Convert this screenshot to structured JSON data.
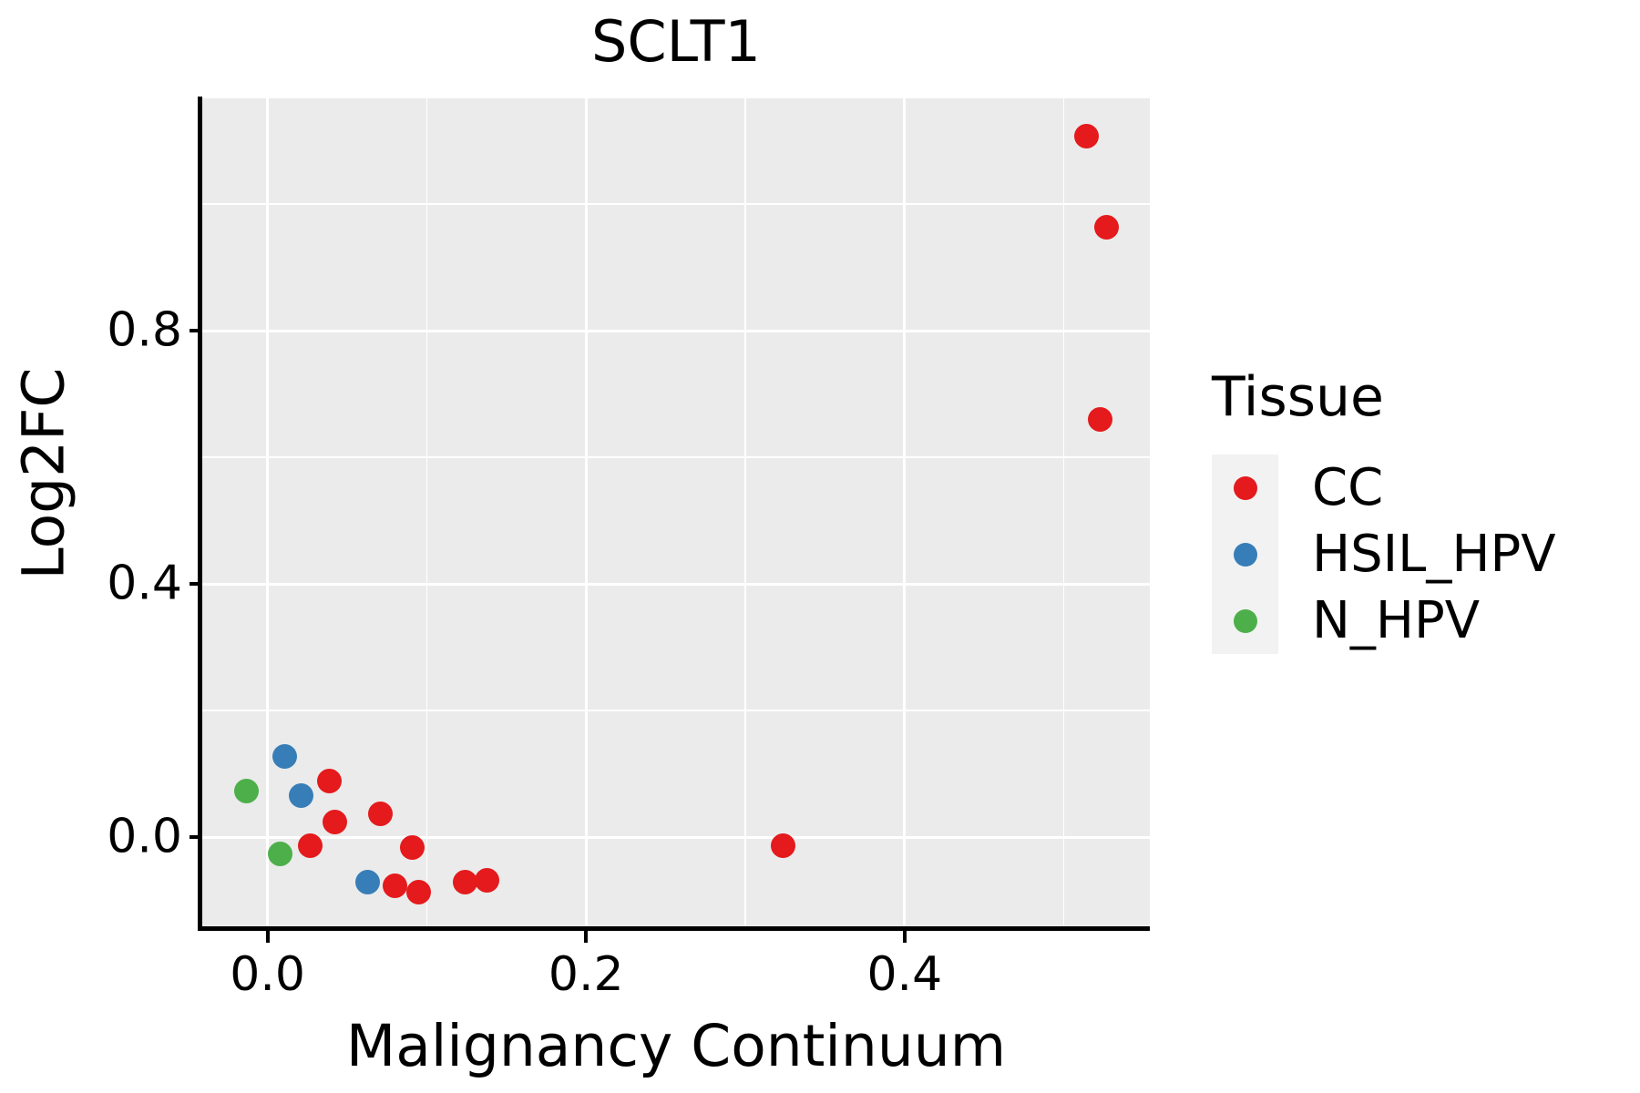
{
  "figure": {
    "title": "SCLT1"
  },
  "axes": {
    "x": {
      "label": "Malignancy Continuum",
      "major_ticks": [
        0.0,
        0.2,
        0.4
      ],
      "major_tick_labels": [
        "0.0",
        "0.2",
        "0.4"
      ],
      "minor_ticks": [
        0.1,
        0.3,
        0.5
      ]
    },
    "y": {
      "label": "Log2FC",
      "major_ticks": [
        0.0,
        0.4,
        0.8
      ],
      "major_tick_labels": [
        "0.0",
        "0.4",
        "0.8"
      ],
      "minor_ticks": [
        0.2,
        0.6,
        1.0
      ]
    }
  },
  "legend": {
    "title": "Tissue",
    "items": [
      {
        "label": "CC",
        "color": "#E41A1C"
      },
      {
        "label": "HSIL_HPV",
        "color": "#377EB8"
      },
      {
        "label": "N_HPV",
        "color": "#4DAF4A"
      }
    ]
  },
  "colors": {
    "panel_background": "#EBEBEB",
    "gridline": "#FFFFFF",
    "axis_line": "#000000",
    "text": "#000000",
    "legend_key_background": "#F2F2F2",
    "cc_red": "#E41A1C",
    "hsil_hpv_blue": "#377EB8",
    "n_hpv_green": "#4DAF4A"
  },
  "chart_data": {
    "type": "scatter",
    "title": "SCLT1",
    "xlabel": "Malignancy Continuum",
    "ylabel": "Log2FC",
    "xlim": [
      -0.041,
      0.554
    ],
    "ylim": [
      -0.141,
      1.167
    ],
    "grid": "on",
    "legend_position": "right",
    "series": [
      {
        "name": "N_HPV",
        "color": "#4DAF4A",
        "points": [
          [
            -0.013,
            0.073
          ],
          [
            0.008,
            -0.027
          ]
        ]
      },
      {
        "name": "HSIL_HPV",
        "color": "#377EB8",
        "points": [
          [
            0.011,
            0.127
          ],
          [
            0.021,
            0.065
          ],
          [
            0.063,
            -0.071
          ]
        ]
      },
      {
        "name": "CC",
        "color": "#E41A1C",
        "points": [
          [
            0.039,
            0.088
          ],
          [
            0.042,
            0.024
          ],
          [
            0.071,
            0.036
          ],
          [
            0.027,
            -0.013
          ],
          [
            0.091,
            -0.017
          ],
          [
            0.08,
            -0.077
          ],
          [
            0.095,
            -0.087
          ],
          [
            0.124,
            -0.071
          ],
          [
            0.138,
            -0.068
          ],
          [
            0.324,
            -0.013
          ],
          [
            0.514,
            1.108
          ],
          [
            0.527,
            0.963
          ],
          [
            0.523,
            0.66
          ]
        ]
      }
    ]
  }
}
